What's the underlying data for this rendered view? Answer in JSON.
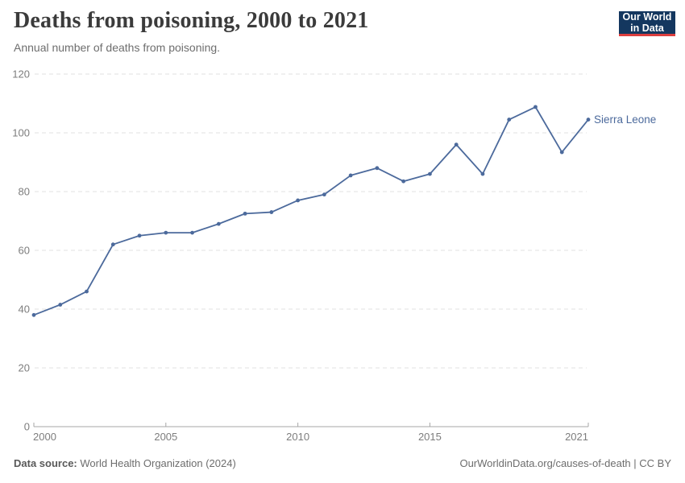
{
  "header": {
    "title": "Deaths from poisoning, 2000 to 2021",
    "subtitle": "Annual number of deaths from poisoning."
  },
  "logo": {
    "line1": "Our World",
    "line2": "in Data"
  },
  "chart_data": {
    "type": "line",
    "title": "Deaths from poisoning, 2000 to 2021",
    "subtitle": "Annual number of deaths from poisoning.",
    "xlabel": "",
    "ylabel": "",
    "ylim": [
      0,
      120
    ],
    "yticks": [
      0,
      20,
      40,
      60,
      80,
      100,
      120
    ],
    "xticks": [
      2000,
      2005,
      2010,
      2015,
      2021
    ],
    "grid": "dashed horizontal gridlines",
    "legend": "end-of-line label",
    "series": [
      {
        "name": "Sierra Leone",
        "color": "#4c6a9c",
        "x": [
          2000,
          2001,
          2002,
          2003,
          2004,
          2005,
          2006,
          2007,
          2008,
          2009,
          2010,
          2011,
          2012,
          2013,
          2014,
          2015,
          2016,
          2017,
          2018,
          2019,
          2020,
          2021
        ],
        "values": [
          38,
          41.5,
          46,
          62,
          65,
          66,
          66,
          69,
          72.5,
          73,
          77,
          79,
          85.5,
          88,
          83.5,
          86,
          96,
          86,
          104.5,
          108.8,
          93.4,
          104.5
        ]
      }
    ]
  },
  "footer": {
    "source_label": "Data source:",
    "source_value": "World Health Organization (2024)",
    "license": "OurWorldinData.org/causes-of-death | CC BY"
  },
  "colors": {
    "line": "#4c6a9c",
    "axis": "#a7a7a7",
    "gridline": "#e2e2e2",
    "tick_label": "#7d7d7d"
  }
}
